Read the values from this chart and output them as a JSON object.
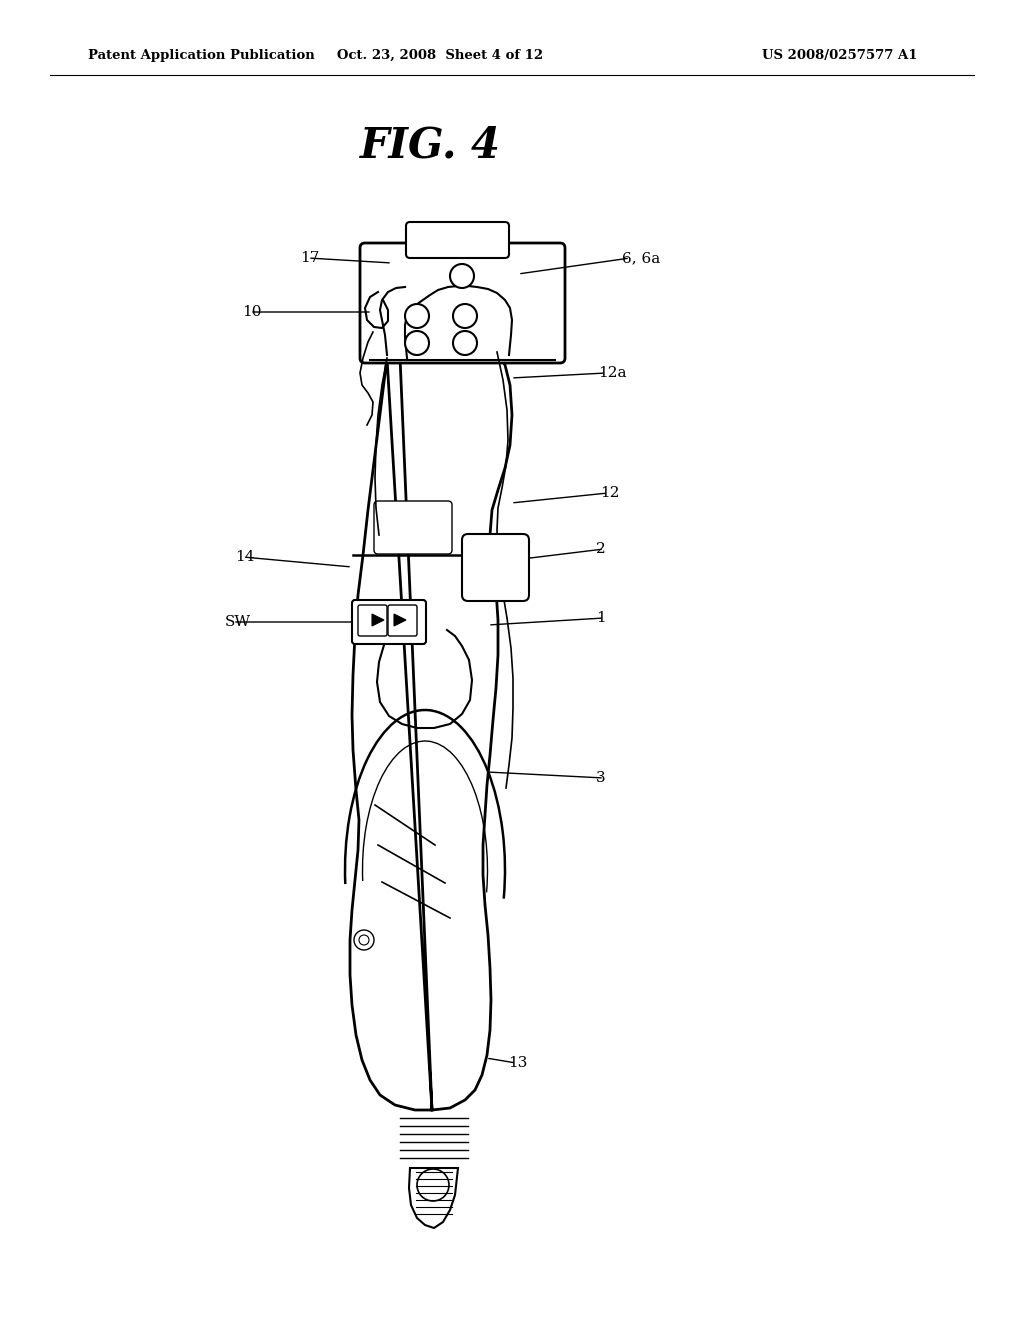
{
  "bg_color": "#ffffff",
  "header_left": "Patent Application Publication",
  "header_mid": "Oct. 23, 2008  Sheet 4 of 12",
  "header_right": "US 2008/0257577 A1",
  "fig_title": "FIG. 4",
  "line_color": "#000000",
  "text_color": "#000000"
}
